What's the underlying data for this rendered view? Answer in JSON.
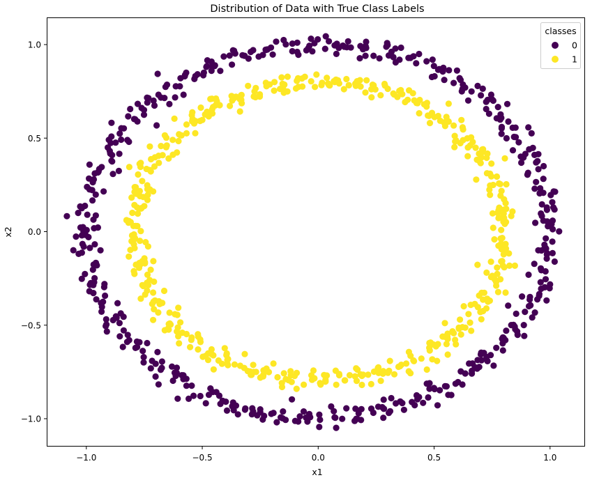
{
  "chart_data": {
    "type": "scatter",
    "title": "Distribution of Data with True Class Labels",
    "xlabel": "x1",
    "ylabel": "x2",
    "xlim": [
      -1.17,
      1.15
    ],
    "ylim": [
      -1.15,
      1.14
    ],
    "xticks": [
      -1.0,
      -0.5,
      0.0,
      0.5,
      1.0
    ],
    "xtick_labels": [
      "−1.0",
      "−0.5",
      "0.0",
      "0.5",
      "1.0"
    ],
    "yticks": [
      -1.0,
      -0.5,
      0.0,
      0.5,
      1.0
    ],
    "ytick_labels": [
      "−1.0",
      "−0.5",
      "0.0",
      "0.5",
      "1.0"
    ],
    "grid": false,
    "legend": {
      "title": "classes",
      "position": "upper right",
      "entries": [
        {
          "label": "0",
          "color": "#440154"
        },
        {
          "label": "1",
          "color": "#fde725"
        }
      ]
    },
    "series": [
      {
        "name": "0",
        "color": "#440154",
        "shape": "circle",
        "radius_mean": 1.0,
        "noise": 0.03,
        "n_points": 500,
        "sample_points": [
          [
            -1.05,
            0.13
          ],
          [
            -1.0,
            -0.03
          ],
          [
            -0.95,
            0.33
          ],
          [
            -0.85,
            0.55
          ],
          [
            -0.7,
            0.7
          ],
          [
            -0.5,
            0.87
          ],
          [
            -0.3,
            0.95
          ],
          [
            -0.1,
            1.0
          ],
          [
            0.08,
            1.04
          ],
          [
            0.3,
            0.96
          ],
          [
            0.5,
            0.86
          ],
          [
            0.7,
            0.72
          ],
          [
            0.86,
            0.5
          ],
          [
            0.97,
            0.25
          ],
          [
            1.05,
            0.33
          ],
          [
            1.0,
            0.0
          ],
          [
            0.98,
            -0.27
          ],
          [
            0.85,
            -0.5
          ],
          [
            0.7,
            -0.7
          ],
          [
            0.5,
            -0.86
          ],
          [
            0.3,
            -0.95
          ],
          [
            0.05,
            -1.02
          ],
          [
            -0.2,
            -1.0
          ],
          [
            -0.45,
            -0.88
          ],
          [
            -0.7,
            -0.72
          ],
          [
            -0.87,
            -0.5
          ],
          [
            -0.97,
            -0.25
          ]
        ]
      },
      {
        "name": "1",
        "color": "#fde725",
        "shape": "circle",
        "radius_mean": 0.8,
        "noise": 0.03,
        "n_points": 500,
        "sample_points": [
          [
            -0.88,
            -0.08
          ],
          [
            -0.83,
            0.15
          ],
          [
            -0.77,
            0.35
          ],
          [
            -0.62,
            0.5
          ],
          [
            -0.5,
            0.62
          ],
          [
            -0.3,
            0.73
          ],
          [
            -0.1,
            0.8
          ],
          [
            0.1,
            0.82
          ],
          [
            0.3,
            0.75
          ],
          [
            0.5,
            0.62
          ],
          [
            0.65,
            0.45
          ],
          [
            0.76,
            0.25
          ],
          [
            0.8,
            0.0
          ],
          [
            0.77,
            -0.3
          ],
          [
            0.65,
            -0.48
          ],
          [
            0.5,
            -0.62
          ],
          [
            0.3,
            -0.72
          ],
          [
            0.1,
            -0.8
          ],
          [
            -0.1,
            -0.8
          ],
          [
            -0.3,
            -0.72
          ],
          [
            -0.5,
            -0.63
          ],
          [
            -0.65,
            -0.45
          ],
          [
            -0.77,
            -0.28
          ]
        ]
      }
    ]
  }
}
